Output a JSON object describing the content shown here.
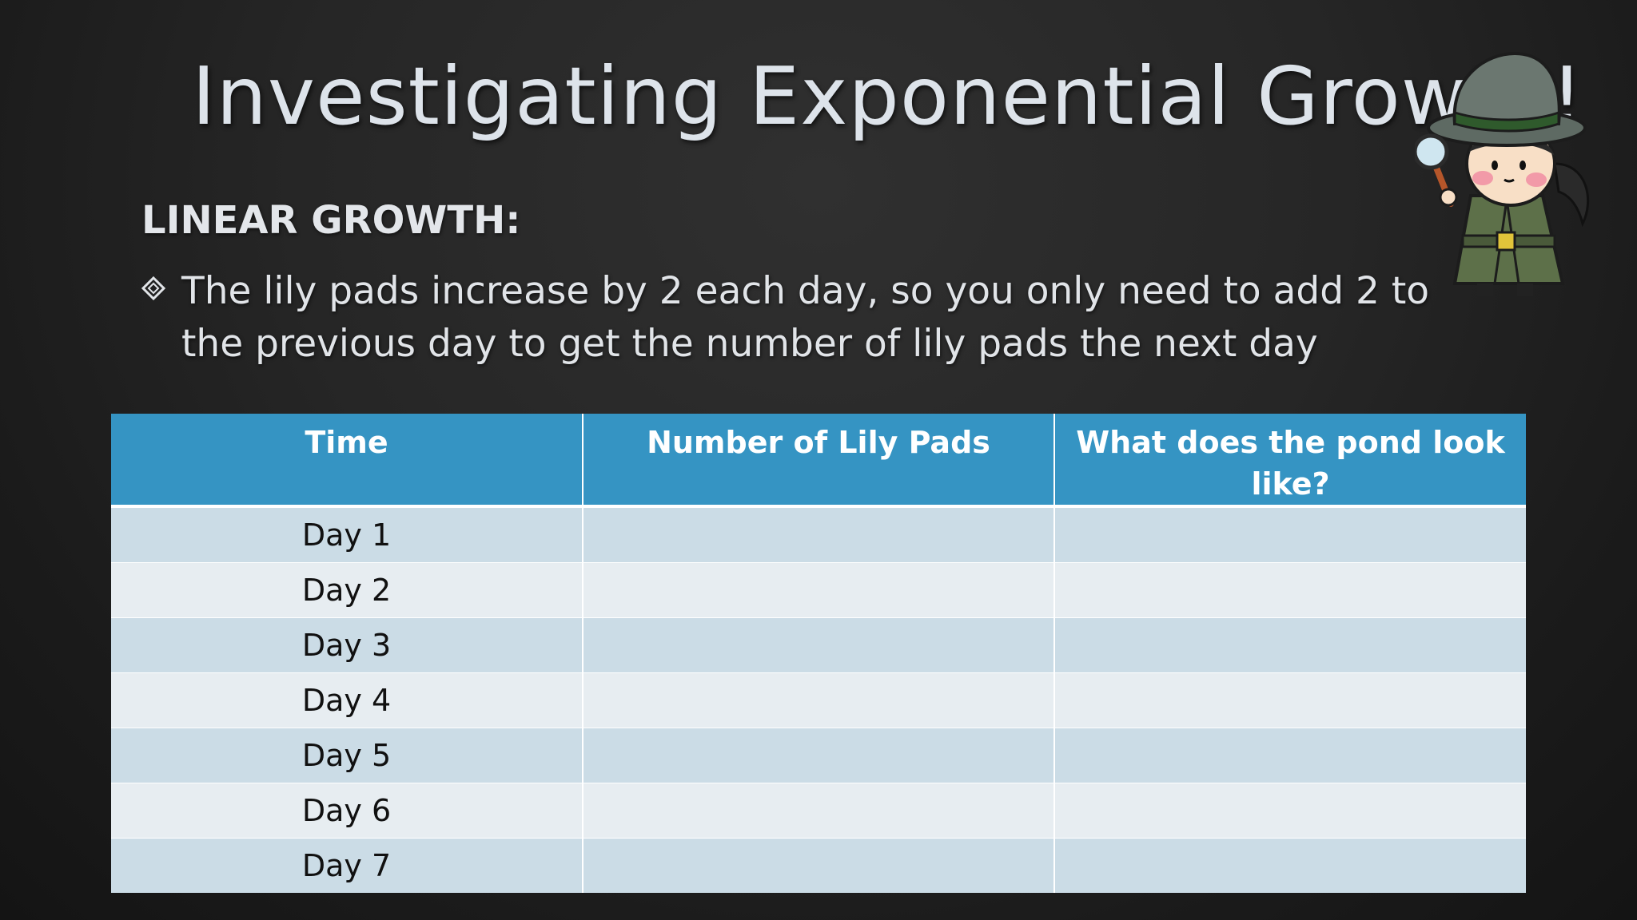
{
  "slide": {
    "title": "Investigating Exponential Growth!",
    "subheading": "LINEAR GROWTH:",
    "bullet_icon": "diamond-bullet-icon",
    "bullet_text": "The lily pads increase by 2 each day, so you only need to add 2 to the previous day to get the number of lily pads the next day",
    "illustration": "detective-girl-with-magnifying-glass"
  },
  "table": {
    "headers": [
      "Time",
      "Number of Lily Pads",
      "What does the pond look like?"
    ],
    "rows": [
      [
        "Day 1",
        "",
        ""
      ],
      [
        "Day 2",
        "",
        ""
      ],
      [
        "Day 3",
        "",
        ""
      ],
      [
        "Day 4",
        "",
        ""
      ],
      [
        "Day 5",
        "",
        ""
      ],
      [
        "Day 6",
        "",
        ""
      ],
      [
        "Day 7",
        "",
        ""
      ]
    ]
  },
  "colors": {
    "background": "#262626",
    "header_fill": "#3594c3",
    "row_dark": "#cbdce6",
    "row_light": "#e7edf1",
    "title_text": "#dde3ea"
  }
}
